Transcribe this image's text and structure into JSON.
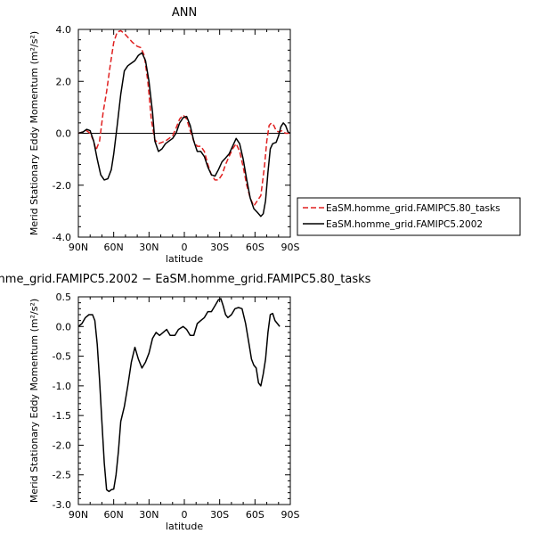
{
  "chart_data": [
    {
      "type": "line",
      "title": "ANN",
      "xlabel": "latitude",
      "ylabel": "Merid Stationary Eddy Momentum (m²/s²)",
      "xlim": [
        90,
        -90
      ],
      "ylim": [
        -4.0,
        4.0
      ],
      "xticks": [
        90,
        60,
        30,
        0,
        -30,
        -60,
        -90
      ],
      "xtick_labels": [
        "90N",
        "60N",
        "30N",
        "0",
        "30S",
        "60S",
        "90S"
      ],
      "yticks": [
        -4.0,
        -2.0,
        0.0,
        2.0,
        4.0
      ],
      "ytick_labels": [
        "-4.0",
        "-2.0",
        "0.0",
        "2.0",
        "4.0"
      ],
      "zero_line": true,
      "grid": false,
      "legend_position": "right",
      "series": [
        {
          "name": "EaSM.homme_grid.FAMIPC5.80_tasks",
          "color": "#e02020",
          "dash": "dashed",
          "points": [
            [
              90,
              0
            ],
            [
              86,
              0.05
            ],
            [
              83,
              0.1
            ],
            [
              80,
              0
            ],
            [
              77,
              -0.3
            ],
            [
              75,
              -0.65
            ],
            [
              72,
              -0.3
            ],
            [
              69,
              0.8
            ],
            [
              66,
              1.6
            ],
            [
              63,
              2.6
            ],
            [
              60,
              3.5
            ],
            [
              57,
              3.9
            ],
            [
              54,
              3.95
            ],
            [
              51,
              3.85
            ],
            [
              48,
              3.7
            ],
            [
              44,
              3.5
            ],
            [
              40,
              3.35
            ],
            [
              37,
              3.3
            ],
            [
              34,
              3.0
            ],
            [
              31,
              2.0
            ],
            [
              28,
              0.5
            ],
            [
              25,
              -0.25
            ],
            [
              22,
              -0.4
            ],
            [
              19,
              -0.35
            ],
            [
              16,
              -0.3
            ],
            [
              13,
              -0.2
            ],
            [
              10,
              -0.1
            ],
            [
              7,
              0.2
            ],
            [
              4,
              0.55
            ],
            [
              1,
              0.7
            ],
            [
              -2,
              0.55
            ],
            [
              -5,
              0.1
            ],
            [
              -8,
              -0.3
            ],
            [
              -11,
              -0.5
            ],
            [
              -14,
              -0.5
            ],
            [
              -17,
              -0.7
            ],
            [
              -20,
              -1.2
            ],
            [
              -23,
              -1.6
            ],
            [
              -26,
              -1.8
            ],
            [
              -29,
              -1.8
            ],
            [
              -32,
              -1.6
            ],
            [
              -35,
              -1.2
            ],
            [
              -38,
              -0.9
            ],
            [
              -41,
              -0.6
            ],
            [
              -44,
              -0.4
            ],
            [
              -47,
              -0.7
            ],
            [
              -50,
              -1.3
            ],
            [
              -53,
              -2.0
            ],
            [
              -56,
              -2.5
            ],
            [
              -59,
              -2.8
            ],
            [
              -62,
              -2.6
            ],
            [
              -65,
              -2.4
            ],
            [
              -68,
              -1.3
            ],
            [
              -70,
              -0.3
            ],
            [
              -72,
              0.3
            ],
            [
              -74,
              0.4
            ],
            [
              -76,
              0.3
            ],
            [
              -78,
              0.1
            ],
            [
              -80,
              0.05
            ],
            [
              -83,
              0.1
            ],
            [
              -86,
              0
            ],
            [
              -90,
              0
            ]
          ]
        },
        {
          "name": "EaSM.homme_grid.FAMIPC5.2002",
          "color": "#000000",
          "dash": "solid",
          "points": [
            [
              90,
              0
            ],
            [
              86,
              0.05
            ],
            [
              83,
              0.15
            ],
            [
              80,
              0.1
            ],
            [
              77,
              -0.3
            ],
            [
              74,
              -1.0
            ],
            [
              71,
              -1.6
            ],
            [
              68,
              -1.8
            ],
            [
              65,
              -1.75
            ],
            [
              62,
              -1.4
            ],
            [
              60,
              -0.8
            ],
            [
              57,
              0.3
            ],
            [
              54,
              1.5
            ],
            [
              51,
              2.4
            ],
            [
              48,
              2.6
            ],
            [
              45,
              2.7
            ],
            [
              42,
              2.8
            ],
            [
              39,
              3.0
            ],
            [
              36,
              3.1
            ],
            [
              33,
              2.8
            ],
            [
              30,
              2.0
            ],
            [
              27,
              0.8
            ],
            [
              25,
              -0.3
            ],
            [
              22,
              -0.7
            ],
            [
              19,
              -0.6
            ],
            [
              16,
              -0.4
            ],
            [
              13,
              -0.3
            ],
            [
              10,
              -0.2
            ],
            [
              7,
              0
            ],
            [
              4,
              0.4
            ],
            [
              1,
              0.6
            ],
            [
              -2,
              0.65
            ],
            [
              -5,
              0.3
            ],
            [
              -8,
              -0.3
            ],
            [
              -11,
              -0.7
            ],
            [
              -14,
              -0.7
            ],
            [
              -17,
              -0.9
            ],
            [
              -20,
              -1.3
            ],
            [
              -23,
              -1.6
            ],
            [
              -26,
              -1.65
            ],
            [
              -29,
              -1.4
            ],
            [
              -32,
              -1.1
            ],
            [
              -35,
              -0.95
            ],
            [
              -38,
              -0.8
            ],
            [
              -41,
              -0.5
            ],
            [
              -44,
              -0.2
            ],
            [
              -47,
              -0.4
            ],
            [
              -50,
              -1.0
            ],
            [
              -53,
              -1.8
            ],
            [
              -56,
              -2.5
            ],
            [
              -59,
              -2.9
            ],
            [
              -62,
              -3.05
            ],
            [
              -65,
              -3.2
            ],
            [
              -67,
              -3.1
            ],
            [
              -69,
              -2.6
            ],
            [
              -71,
              -1.5
            ],
            [
              -73,
              -0.6
            ],
            [
              -75,
              -0.4
            ],
            [
              -78,
              -0.35
            ],
            [
              -80,
              -0.1
            ],
            [
              -82,
              0.25
            ],
            [
              -84,
              0.4
            ],
            [
              -86,
              0.3
            ],
            [
              -88,
              0.05
            ],
            [
              -90,
              0
            ]
          ]
        }
      ]
    },
    {
      "type": "line",
      "title": "nme_grid.FAMIPC5.2002 − EaSM.homme_grid.FAMIPC5.80_tasks",
      "xlabel": "latitude",
      "ylabel": "Merid Stationary Eddy Momentum (m²/s²)",
      "xlim": [
        90,
        -90
      ],
      "ylim": [
        -3.0,
        0.5
      ],
      "xticks": [
        90,
        60,
        30,
        0,
        -30,
        -60,
        -90
      ],
      "xtick_labels": [
        "90N",
        "60N",
        "30N",
        "0",
        "30S",
        "60S",
        "90S"
      ],
      "yticks": [
        -3.0,
        -2.5,
        -2.0,
        -1.5,
        -1.0,
        -0.5,
        0.0,
        0.5
      ],
      "ytick_labels": [
        "-3.0",
        "-2.5",
        "-2.0",
        "-1.5",
        "-1.0",
        "-0.5",
        "0.0",
        "0.5"
      ],
      "zero_line": false,
      "grid": false,
      "series": [
        {
          "color": "#000000",
          "dash": "solid",
          "points": [
            [
              90,
              0
            ],
            [
              87,
              0.05
            ],
            [
              84,
              0.15
            ],
            [
              81,
              0.2
            ],
            [
              78,
              0.2
            ],
            [
              76,
              0.1
            ],
            [
              74,
              -0.3
            ],
            [
              72,
              -0.9
            ],
            [
              70,
              -1.6
            ],
            [
              68,
              -2.3
            ],
            [
              66,
              -2.75
            ],
            [
              64,
              -2.78
            ],
            [
              62,
              -2.75
            ],
            [
              60,
              -2.74
            ],
            [
              58,
              -2.5
            ],
            [
              56,
              -2.1
            ],
            [
              54,
              -1.6
            ],
            [
              51,
              -1.35
            ],
            [
              48,
              -1.0
            ],
            [
              45,
              -0.6
            ],
            [
              42,
              -0.35
            ],
            [
              39,
              -0.55
            ],
            [
              36,
              -0.7
            ],
            [
              33,
              -0.6
            ],
            [
              30,
              -0.45
            ],
            [
              27,
              -0.2
            ],
            [
              24,
              -0.1
            ],
            [
              21,
              -0.15
            ],
            [
              18,
              -0.1
            ],
            [
              15,
              -0.05
            ],
            [
              12,
              -0.15
            ],
            [
              8,
              -0.15
            ],
            [
              5,
              -0.05
            ],
            [
              1,
              0
            ],
            [
              -2,
              -0.05
            ],
            [
              -5,
              -0.15
            ],
            [
              -8,
              -0.15
            ],
            [
              -11,
              0.05
            ],
            [
              -14,
              0.1
            ],
            [
              -17,
              0.15
            ],
            [
              -20,
              0.25
            ],
            [
              -23,
              0.25
            ],
            [
              -26,
              0.35
            ],
            [
              -29,
              0.45
            ],
            [
              -31,
              0.47
            ],
            [
              -33,
              0.35
            ],
            [
              -35,
              0.2
            ],
            [
              -37,
              0.15
            ],
            [
              -40,
              0.2
            ],
            [
              -43,
              0.3
            ],
            [
              -46,
              0.32
            ],
            [
              -49,
              0.3
            ],
            [
              -52,
              0.05
            ],
            [
              -55,
              -0.3
            ],
            [
              -57,
              -0.55
            ],
            [
              -59,
              -0.65
            ],
            [
              -61,
              -0.7
            ],
            [
              -63,
              -0.95
            ],
            [
              -65,
              -1.0
            ],
            [
              -67,
              -0.8
            ],
            [
              -69,
              -0.55
            ],
            [
              -71,
              -0.1
            ],
            [
              -73,
              0.2
            ],
            [
              -75,
              0.22
            ],
            [
              -77,
              0.1
            ],
            [
              -79,
              0.05
            ],
            [
              -81,
              0
            ]
          ]
        }
      ]
    }
  ]
}
